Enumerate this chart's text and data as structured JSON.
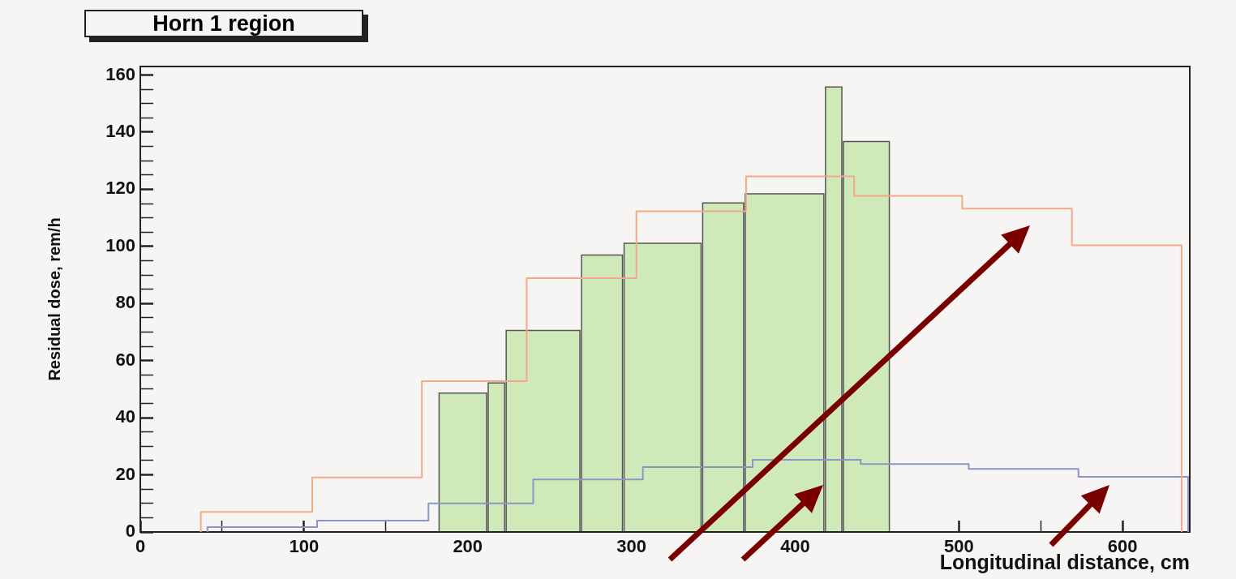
{
  "chart_data": {
    "type": "histogram",
    "title": "Horn 1 region",
    "xlabel": "Longitudinal distance, cm",
    "ylabel": "Residual dose, rem/h",
    "xlim": [
      0,
      641
    ],
    "ylim": [
      0,
      163
    ],
    "xticks": [
      0,
      {
        "value": 50,
        "label": null
      },
      100,
      {
        "value": 150,
        "label": null
      },
      200,
      {
        "value": 250,
        "label": null
      },
      300,
      {
        "value": 350,
        "label": null
      },
      400,
      {
        "value": 450,
        "label": null
      },
      500,
      {
        "value": 550,
        "label": null
      },
      600
    ],
    "yticks": [
      0,
      {
        "value": 5,
        "label": null
      },
      {
        "value": 10,
        "label": null
      },
      {
        "value": 15,
        "label": null
      },
      20,
      {
        "value": 25,
        "label": null
      },
      {
        "value": 30,
        "label": null
      },
      {
        "value": 35,
        "label": null
      },
      40,
      {
        "value": 45,
        "label": null
      },
      {
        "value": 50,
        "label": null
      },
      {
        "value": 55,
        "label": null
      },
      60,
      {
        "value": 65,
        "label": null
      },
      {
        "value": 70,
        "label": null
      },
      {
        "value": 75,
        "label": null
      },
      80,
      {
        "value": 85,
        "label": null
      },
      {
        "value": 90,
        "label": null
      },
      {
        "value": 95,
        "label": null
      },
      100,
      {
        "value": 105,
        "label": null
      },
      {
        "value": 110,
        "label": null
      },
      {
        "value": 115,
        "label": null
      },
      120,
      {
        "value": 125,
        "label": null
      },
      {
        "value": 130,
        "label": null
      },
      {
        "value": 135,
        "label": null
      },
      140,
      {
        "value": 145,
        "label": null
      },
      {
        "value": 150,
        "label": null
      },
      {
        "value": 155,
        "label": null
      },
      160
    ],
    "grid": false,
    "legend": false,
    "series": [
      {
        "type": "histogram",
        "color": "#cfeab8",
        "bins": [
          182,
          212,
          223,
          269,
          295,
          343,
          369,
          418,
          429,
          458
        ],
        "values": [
          48.6,
          52.2,
          70.6,
          97,
          101.1,
          115.2,
          118.4,
          155.8,
          136.7
        ]
      },
      {
        "type": "step",
        "color": "#f2a98a",
        "x": [
          37,
          37,
          105,
          172,
          236,
          303,
          370,
          436,
          502,
          569,
          636
        ],
        "values": [
          0,
          7,
          19.1,
          52.8,
          88.9,
          112.3,
          124.5,
          117.7,
          113.2,
          100.4,
          0
        ]
      },
      {
        "type": "step",
        "color": "#8a96c4",
        "x": [
          41,
          41,
          108,
          176,
          240,
          307,
          374,
          440,
          506,
          573,
          640
        ],
        "values": [
          0,
          1.7,
          4,
          10,
          18.4,
          22.7,
          25.3,
          23.8,
          22.1,
          19.3,
          0
        ]
      }
    ]
  }
}
